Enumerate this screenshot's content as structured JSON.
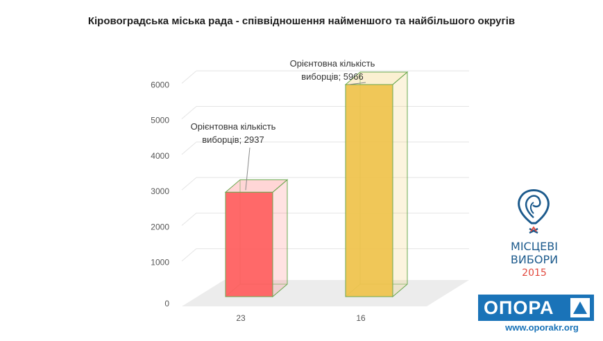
{
  "chart_data": {
    "type": "bar",
    "title": "Кіровоградська міська рада - співвідношення найменшого та найбільшого округів",
    "categories": [
      "23",
      "16"
    ],
    "series": [
      {
        "name": "Орієнтовна кількість виборців",
        "values": [
          2937,
          5966
        ],
        "colors": [
          "#ff5c5c",
          "#efc24a"
        ]
      }
    ],
    "data_labels": [
      [
        "Орієнтовна кількість",
        "виборців; 2937"
      ],
      [
        "Орієнтовна кількість",
        "виборців; 5966"
      ]
    ],
    "y_ticks": [
      "0",
      "1000",
      "2000",
      "3000",
      "4000",
      "5000",
      "6000"
    ],
    "ylim": [
      0,
      6000
    ],
    "xlabel": "",
    "ylabel": "",
    "grid": true,
    "style": "3d-column"
  },
  "logo": {
    "line1": "МІСЦЕВІ",
    "line2": "ВИБОРИ",
    "year": "2015",
    "brand": "ОПОРА",
    "url": "www.oporakr.org",
    "accent": "#1a73b8",
    "red": "#e2483d"
  }
}
